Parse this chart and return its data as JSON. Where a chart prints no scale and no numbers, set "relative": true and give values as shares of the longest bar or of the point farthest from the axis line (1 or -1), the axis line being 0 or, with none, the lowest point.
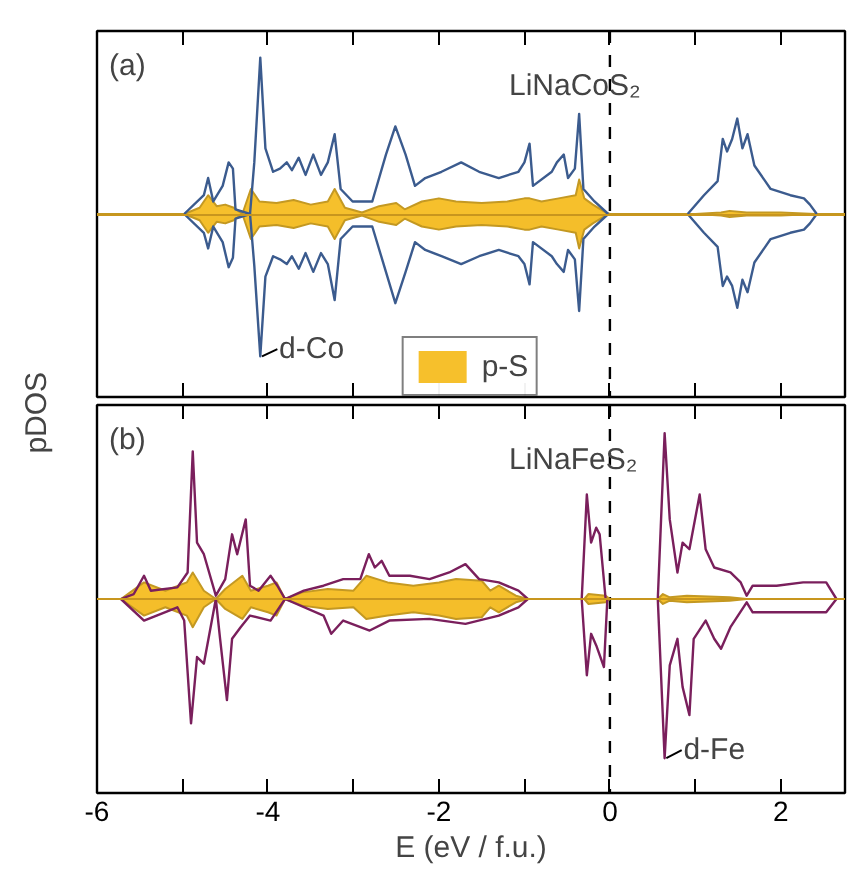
{
  "chart_data": [
    {
      "type": "line",
      "relative": true,
      "tick_labels": false,
      "ylabel": "pDOS",
      "legend": "bottom",
      "annotations": [
        "(a)",
        "LiNaCoS₂"
      ],
      "xlim": [
        -6,
        2.75
      ],
      "xticks": [
        {
          "value": -6,
          "label": null
        },
        {
          "value": -5,
          "label": null
        },
        {
          "value": -4,
          "label": null
        },
        {
          "value": -3,
          "label": null
        },
        {
          "value": -2,
          "label": null
        },
        {
          "value": -1,
          "label": null
        },
        {
          "value": 0,
          "label": null
        },
        {
          "value": 1,
          "label": null
        },
        {
          "value": 2,
          "label": null
        }
      ],
      "ref_lines": [
        {
          "axis": "x",
          "value": 0,
          "color": "#000000",
          "line_style": "dashed"
        }
      ],
      "series": [
        {
          "type": "area",
          "name": "p-S",
          "color": "#f6c02c",
          "x": [
            -6,
            -4.98,
            -4.8,
            -4.7,
            -4.6,
            -4.5,
            -4.4,
            -4.3,
            -4.2,
            -4.1,
            -3.9,
            -3.7,
            -3.5,
            -3.3,
            -3.22,
            -3.1,
            -2.9,
            -2.7,
            -2.5,
            -2.4,
            -2.2,
            -2.0,
            -1.8,
            -1.5,
            -1.2,
            -1.0,
            -0.94,
            -0.8,
            -0.6,
            -0.4,
            -0.36,
            -0.3,
            -0.2,
            -0.05,
            0,
            1.0,
            1.3,
            1.4,
            1.6,
            2.0,
            2.4,
            2.75
          ],
          "values": [
            0,
            0,
            0.04,
            0.12,
            0.05,
            0.06,
            0.04,
            0.0,
            0.16,
            0.08,
            0.07,
            0.09,
            0.06,
            0.08,
            0.16,
            0.04,
            0.01,
            0.05,
            0.07,
            0.03,
            0.08,
            0.1,
            0.08,
            0.07,
            0.08,
            0.1,
            0.1,
            0.08,
            0.1,
            0.12,
            0.22,
            0.1,
            0.06,
            0.01,
            0,
            0,
            0.01,
            0.02,
            0.01,
            0.01,
            0,
            0
          ]
        },
        {
          "type": "area",
          "color": "#f4be2a",
          "x": [
            -6,
            -4.98,
            -4.8,
            -4.7,
            -4.6,
            -4.5,
            -4.4,
            -4.3,
            -4.2,
            -4.1,
            -3.9,
            -3.7,
            -3.5,
            -3.3,
            -3.22,
            -3.1,
            -2.9,
            -2.7,
            -2.5,
            -2.4,
            -2.2,
            -2.0,
            -1.8,
            -1.5,
            -1.2,
            -1.0,
            -0.94,
            -0.8,
            -0.6,
            -0.4,
            -0.36,
            -0.3,
            -0.2,
            -0.05,
            0,
            1.0,
            1.3,
            1.4,
            1.6,
            2.0,
            2.4,
            2.75
          ],
          "values": [
            0,
            0,
            -0.04,
            -0.12,
            -0.05,
            -0.06,
            -0.04,
            0.0,
            -0.16,
            -0.08,
            -0.07,
            -0.09,
            -0.06,
            -0.08,
            -0.16,
            -0.04,
            -0.01,
            -0.05,
            -0.07,
            -0.03,
            -0.08,
            -0.1,
            -0.08,
            -0.07,
            -0.08,
            -0.1,
            -0.1,
            -0.08,
            -0.1,
            -0.12,
            -0.22,
            -0.1,
            -0.06,
            -0.01,
            0,
            0,
            -0.01,
            -0.02,
            -0.01,
            -0.01,
            0,
            0
          ]
        },
        {
          "color": "#3b5b8e",
          "x": [
            -4.98,
            -4.75,
            -4.7,
            -4.64,
            -4.53,
            -4.46,
            -4.41,
            -4.38,
            -4.21,
            -4.16,
            -4.09,
            -4.03,
            -3.94,
            -3.86,
            -3.78,
            -3.72,
            -3.64,
            -3.56,
            -3.47,
            -3.38,
            -3.3,
            -3.22,
            -3.15,
            -3.01,
            -2.78,
            -2.62,
            -2.51,
            -2.39,
            -2.28,
            -2.16,
            -1.97,
            -1.74,
            -1.53,
            -1.3,
            -1.07,
            -1.0,
            -0.94,
            -0.9,
            -0.68,
            -0.62,
            -0.54,
            -0.49,
            -0.41,
            -0.36,
            -0.31,
            -0.18,
            -0.02,
            0.4,
            0.91,
            1.1,
            1.26,
            1.32,
            1.37,
            1.43,
            1.49,
            1.55,
            1.61,
            1.69,
            1.88,
            2.11,
            2.27,
            2.34,
            2.42
          ],
          "values": [
            0,
            0.12,
            0.23,
            0.08,
            0.18,
            0.33,
            0.29,
            0.03,
            0.0,
            0.33,
            1.0,
            0.42,
            0.27,
            0.29,
            0.33,
            0.28,
            0.36,
            0.25,
            0.38,
            0.25,
            0.33,
            0.51,
            0.16,
            0.08,
            0.08,
            0.38,
            0.56,
            0.38,
            0.18,
            0.23,
            0.27,
            0.33,
            0.27,
            0.23,
            0.27,
            0.33,
            0.45,
            0.18,
            0.27,
            0.33,
            0.38,
            0.23,
            0.29,
            0.64,
            0.16,
            0.08,
            0,
            null,
            0,
            0.12,
            0.21,
            0.48,
            0.4,
            0.48,
            0.61,
            0.42,
            0.51,
            0.31,
            0.16,
            0.12,
            0.1,
            0.06,
            0
          ]
        },
        {
          "name": "d-Co",
          "color": "#3b5b8e",
          "x": [
            -4.98,
            -4.75,
            -4.7,
            -4.64,
            -4.53,
            -4.46,
            -4.41,
            -4.38,
            -4.21,
            -4.16,
            -4.09,
            -4.03,
            -3.94,
            -3.86,
            -3.78,
            -3.72,
            -3.64,
            -3.56,
            -3.47,
            -3.38,
            -3.3,
            -3.22,
            -3.15,
            -3.01,
            -2.78,
            -2.62,
            -2.51,
            -2.39,
            -2.28,
            -2.16,
            -1.97,
            -1.74,
            -1.53,
            -1.3,
            -1.07,
            -1.0,
            -0.94,
            -0.9,
            -0.68,
            -0.62,
            -0.54,
            -0.49,
            -0.41,
            -0.36,
            -0.31,
            -0.18,
            -0.02,
            0.4,
            0.91,
            1.1,
            1.26,
            1.32,
            1.37,
            1.43,
            1.49,
            1.55,
            1.61,
            1.69,
            1.88,
            2.11,
            2.27,
            2.34,
            2.42
          ],
          "values": [
            0,
            -0.12,
            -0.22,
            -0.08,
            -0.18,
            -0.34,
            -0.28,
            -0.03,
            0.0,
            -0.33,
            -0.91,
            -0.4,
            -0.27,
            -0.29,
            -0.32,
            -0.27,
            -0.35,
            -0.25,
            -0.37,
            -0.25,
            -0.32,
            -0.55,
            -0.16,
            -0.08,
            -0.08,
            -0.37,
            -0.57,
            -0.37,
            -0.18,
            -0.23,
            -0.27,
            -0.32,
            -0.27,
            -0.23,
            -0.27,
            -0.32,
            -0.45,
            -0.18,
            -0.27,
            -0.32,
            -0.37,
            -0.23,
            -0.29,
            -0.62,
            -0.16,
            -0.08,
            0,
            null,
            0,
            -0.12,
            -0.21,
            -0.46,
            -0.4,
            -0.46,
            -0.6,
            -0.42,
            -0.5,
            -0.31,
            -0.16,
            -0.12,
            -0.1,
            -0.06,
            0
          ]
        }
      ]
    },
    {
      "type": "line",
      "relative": true,
      "tick_labels": "x",
      "xlabel": "E (eV / f.u.)",
      "annotations": [
        "(b)",
        "LiNaFeS₂"
      ],
      "xlim": [
        -6,
        2.75
      ],
      "xticks": [
        -6,
        {
          "value": -5,
          "label": null
        },
        -4,
        {
          "value": -3,
          "label": null
        },
        -2,
        {
          "value": -1,
          "label": null
        },
        0,
        {
          "value": 1,
          "label": null
        },
        2
      ],
      "ref_lines": [
        {
          "axis": "x",
          "value": 0,
          "color": "#000000",
          "line_style": "dashed"
        }
      ],
      "series": [
        {
          "type": "area",
          "color": "#f6c02c",
          "x": [
            -6,
            -5.72,
            -5.45,
            -5.2,
            -4.95,
            -4.88,
            -4.75,
            -4.61,
            -4.5,
            -4.3,
            -4.2,
            -4.0,
            -3.9,
            -3.8,
            -3.6,
            -3.3,
            -3.0,
            -2.85,
            -2.6,
            -2.3,
            -2.0,
            -1.8,
            -1.5,
            -1.4,
            -1.3,
            -1.1,
            -0.96,
            -0.3,
            -0.25,
            -0.05,
            0,
            0.56,
            0.62,
            0.7,
            0.9,
            1.4,
            1.6,
            2.75
          ],
          "values": [
            0,
            0,
            0.1,
            0.05,
            0.1,
            0.16,
            0.05,
            0,
            0.06,
            0.14,
            0.05,
            0.08,
            0.1,
            0,
            0.04,
            0.06,
            0.05,
            0.14,
            0.1,
            0.08,
            0.1,
            0.12,
            0.11,
            0.05,
            0.08,
            0.02,
            0,
            0,
            0.03,
            0.02,
            0,
            0,
            0.03,
            0.01,
            0.02,
            0.01,
            0,
            0
          ]
        },
        {
          "type": "area",
          "color": "#f4be2a",
          "x": [
            -6,
            -5.72,
            -5.45,
            -5.2,
            -4.95,
            -4.88,
            -4.75,
            -4.61,
            -4.5,
            -4.3,
            -4.2,
            -4.0,
            -3.9,
            -3.8,
            -3.6,
            -3.3,
            -3.0,
            -2.85,
            -2.6,
            -2.3,
            -2.0,
            -1.8,
            -1.5,
            -1.4,
            -1.3,
            -1.1,
            -0.96,
            -0.3,
            -0.25,
            -0.05,
            0,
            0.56,
            0.62,
            0.7,
            0.9,
            1.4,
            1.6,
            2.75
          ],
          "values": [
            0,
            0,
            -0.1,
            -0.05,
            -0.1,
            -0.17,
            -0.05,
            0,
            -0.06,
            -0.12,
            -0.05,
            -0.08,
            -0.1,
            0,
            -0.04,
            -0.06,
            -0.05,
            -0.12,
            -0.1,
            -0.08,
            -0.1,
            -0.12,
            -0.11,
            -0.05,
            -0.08,
            -0.02,
            0,
            0,
            -0.03,
            -0.02,
            0,
            0,
            -0.03,
            -0.01,
            -0.02,
            -0.01,
            0,
            0
          ]
        },
        {
          "color": "#7a1f5c",
          "x": [
            -5.72,
            -5.57,
            -5.45,
            -5.37,
            -5.06,
            -4.94,
            -4.88,
            -4.83,
            -4.75,
            -4.61,
            -4.5,
            -4.42,
            -4.36,
            -4.26,
            -4.21,
            -4.11,
            -3.97,
            -3.89,
            -3.8,
            -3.58,
            -3.35,
            -3.12,
            -2.92,
            -2.82,
            -2.75,
            -2.67,
            -2.58,
            -2.34,
            -2.11,
            -1.88,
            -1.69,
            -1.53,
            -1.3,
            -1.07,
            -0.96,
            -0.6,
            -0.33,
            -0.27,
            -0.22,
            -0.16,
            -0.12,
            -0.05,
            0.3,
            0.56,
            0.64,
            0.7,
            0.79,
            0.85,
            0.93,
            1.05,
            1.12,
            1.22,
            1.41,
            1.53,
            1.6,
            1.67,
            1.95,
            2.26,
            2.53,
            2.65
          ],
          "values": [
            0,
            0.03,
            0.14,
            0.05,
            0.07,
            0.16,
            0.89,
            0.34,
            0.27,
            0.02,
            0.12,
            0.39,
            0.27,
            0.48,
            0.08,
            0.05,
            0.14,
            0.08,
            0,
            0.05,
            0.08,
            0.12,
            0.12,
            0.27,
            0.19,
            0.23,
            0.14,
            0.14,
            0.12,
            0.16,
            0.21,
            0.12,
            0.1,
            0.05,
            0,
            null,
            0,
            0.63,
            0.34,
            0.43,
            0.39,
            0,
            null,
            0,
            1.0,
            0.48,
            0.16,
            0.34,
            0.3,
            0.63,
            0.3,
            0.19,
            0.16,
            0.1,
            0.02,
            0.08,
            0.08,
            0.1,
            0.1,
            0
          ]
        },
        {
          "name": "d-Fe",
          "color": "#7a1f5c",
          "x": [
            -5.72,
            -5.45,
            -5.06,
            -4.98,
            -4.9,
            -4.83,
            -4.75,
            -4.61,
            -4.56,
            -4.48,
            -4.42,
            -4.32,
            -4.21,
            -3.97,
            -3.8,
            -3.35,
            -3.26,
            -3.12,
            -2.81,
            -2.58,
            -2.11,
            -1.69,
            -1.3,
            -1.07,
            -0.96,
            -0.6,
            -0.33,
            -0.27,
            -0.22,
            -0.16,
            -0.07,
            -0.03,
            0.3,
            0.56,
            0.64,
            0.7,
            0.79,
            0.85,
            0.93,
            0.98,
            1.12,
            1.22,
            1.3,
            1.41,
            1.6,
            1.67,
            2.26,
            2.53,
            2.65
          ],
          "values": [
            0,
            -0.13,
            -0.05,
            -0.13,
            -0.75,
            -0.35,
            -0.39,
            0,
            -0.24,
            -0.61,
            -0.24,
            -0.17,
            -0.1,
            -0.13,
            0,
            -0.1,
            -0.21,
            -0.13,
            -0.19,
            -0.13,
            -0.12,
            -0.15,
            -0.1,
            -0.05,
            0,
            null,
            0,
            -0.46,
            -0.21,
            -0.28,
            -0.41,
            0,
            null,
            0,
            -0.96,
            -0.4,
            -0.24,
            -0.53,
            -0.7,
            -0.24,
            -0.13,
            -0.24,
            -0.3,
            -0.17,
            -0.02,
            -0.08,
            -0.08,
            -0.08,
            0
          ]
        }
      ]
    }
  ]
}
